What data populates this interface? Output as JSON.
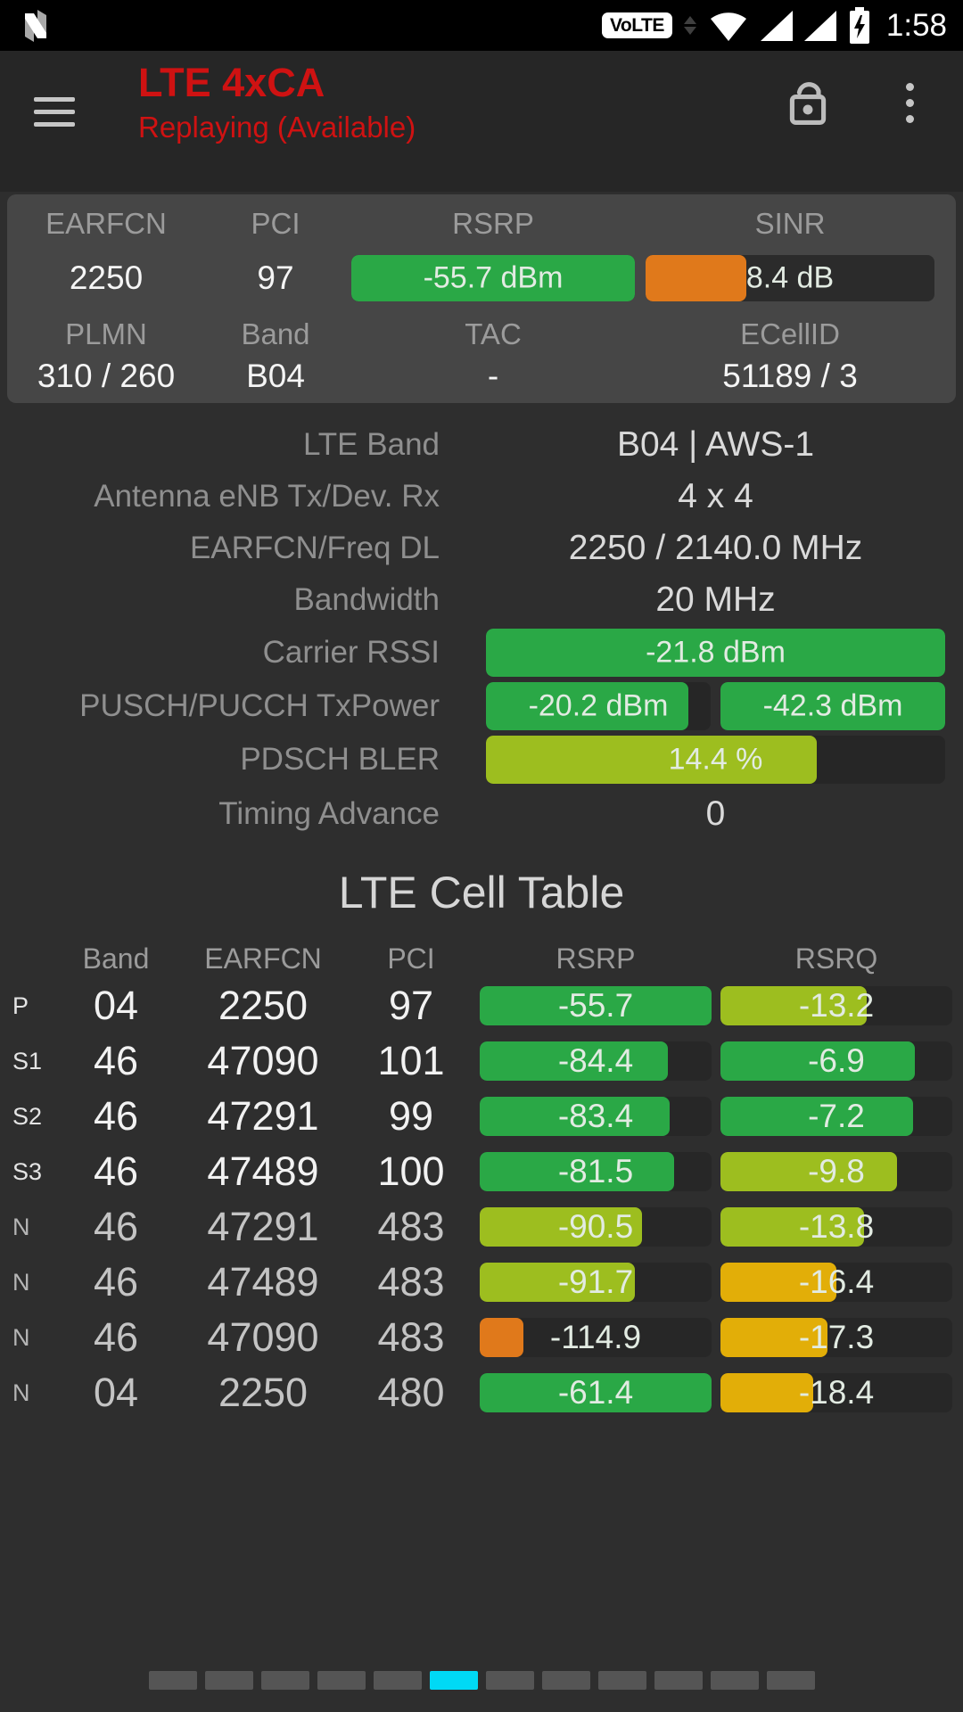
{
  "status_bar": {
    "time": "1:58",
    "volte_label": "VoLTE"
  },
  "header": {
    "title": "LTE 4xCA",
    "subtitle": "Replaying (Available)"
  },
  "colors": {
    "green": "#2aa846",
    "yellow_green": "#9dbe1f",
    "amber": "#e2ae08",
    "orange": "#e0791b",
    "accent_red": "#cf1212",
    "active_cyan": "#00d9f5"
  },
  "icons": {
    "left_logo": "android-n-logo",
    "menu": "hamburger-menu-icon",
    "lock": "lock-open-icon",
    "overflow": "overflow-menu-icon",
    "wifi": "wifi-icon",
    "signal": "signal-triangle-icon",
    "battery": "battery-charging-icon"
  },
  "summary": {
    "cells": [
      {
        "label": "EARFCN",
        "value": "2250"
      },
      {
        "label": "PCI",
        "value": "97"
      },
      {
        "label": "RSRP",
        "bar": {
          "text": "-55.7 dBm",
          "fill": 100,
          "color": "green"
        }
      },
      {
        "label": "SINR",
        "bar": {
          "text": "8.4 dB",
          "fill": 35,
          "color": "orange"
        }
      },
      {
        "label": "PLMN",
        "value": "310 / 260"
      },
      {
        "label": "Band",
        "value": "B04"
      },
      {
        "label": "TAC",
        "value": "-"
      },
      {
        "label": "ECellID",
        "value": "51189 / 3"
      }
    ]
  },
  "details": {
    "rows": [
      {
        "label": "LTE Band",
        "value": "B04 | AWS-1"
      },
      {
        "label": "Antenna eNB Tx/Dev. Rx",
        "value": "4 x 4"
      },
      {
        "label": "EARFCN/Freq DL",
        "value": "2250 / 2140.0 MHz"
      },
      {
        "label": "Bandwidth",
        "value": "20 MHz"
      },
      {
        "label": "Carrier RSSI",
        "bars": [
          {
            "text": "-21.8 dBm",
            "fill": 100,
            "color": "green"
          }
        ]
      },
      {
        "label": "PUSCH/PUCCH TxPower",
        "bars": [
          {
            "text": "-20.2 dBm",
            "fill": 90,
            "color": "green"
          },
          {
            "text": "-42.3 dBm",
            "fill": 100,
            "color": "green"
          }
        ]
      },
      {
        "label": "PDSCH BLER",
        "bars": [
          {
            "text": "14.4 %",
            "fill": 72,
            "color": "yellow_green"
          }
        ]
      },
      {
        "label": "Timing Advance",
        "value": "0"
      }
    ]
  },
  "cell_table": {
    "title": "LTE Cell Table",
    "columns": [
      "Band",
      "EARFCN",
      "PCI",
      "RSRP",
      "RSRQ"
    ],
    "rows": [
      {
        "type": "P",
        "band": "04",
        "earfcn": "2250",
        "pci": "97",
        "rsrp": {
          "text": "-55.7",
          "fill": 100,
          "color": "green"
        },
        "rsrq": {
          "text": "-13.2",
          "fill": 63,
          "color": "yellow_green"
        }
      },
      {
        "type": "S1",
        "band": "46",
        "earfcn": "47090",
        "pci": "101",
        "rsrp": {
          "text": "-84.4",
          "fill": 81,
          "color": "green"
        },
        "rsrq": {
          "text": "-6.9",
          "fill": 84,
          "color": "green"
        }
      },
      {
        "type": "S2",
        "band": "46",
        "earfcn": "47291",
        "pci": "99",
        "rsrp": {
          "text": "-83.4",
          "fill": 82,
          "color": "green"
        },
        "rsrq": {
          "text": "-7.2",
          "fill": 83,
          "color": "green"
        }
      },
      {
        "type": "S3",
        "band": "46",
        "earfcn": "47489",
        "pci": "100",
        "rsrp": {
          "text": "-81.5",
          "fill": 84,
          "color": "green"
        },
        "rsrq": {
          "text": "-9.8",
          "fill": 76,
          "color": "yellow_green"
        }
      },
      {
        "type": "N",
        "band": "46",
        "earfcn": "47291",
        "pci": "483",
        "rsrp": {
          "text": "-90.5",
          "fill": 70,
          "color": "yellow_green"
        },
        "rsrq": {
          "text": "-13.8",
          "fill": 62,
          "color": "yellow_green"
        }
      },
      {
        "type": "N",
        "band": "46",
        "earfcn": "47489",
        "pci": "483",
        "rsrp": {
          "text": "-91.7",
          "fill": 67,
          "color": "yellow_green"
        },
        "rsrq": {
          "text": "-16.4",
          "fill": 50,
          "color": "amber"
        }
      },
      {
        "type": "N",
        "band": "46",
        "earfcn": "47090",
        "pci": "483",
        "rsrp": {
          "text": "-114.9",
          "fill": 19,
          "color": "orange"
        },
        "rsrq": {
          "text": "-17.3",
          "fill": 46,
          "color": "amber"
        }
      },
      {
        "type": "N",
        "band": "04",
        "earfcn": "2250",
        "pci": "480",
        "rsrp": {
          "text": "-61.4",
          "fill": 100,
          "color": "green"
        },
        "rsrq": {
          "text": "-18.4",
          "fill": 40,
          "color": "amber"
        }
      }
    ]
  },
  "pagination": {
    "total": 12,
    "active_index": 5
  }
}
